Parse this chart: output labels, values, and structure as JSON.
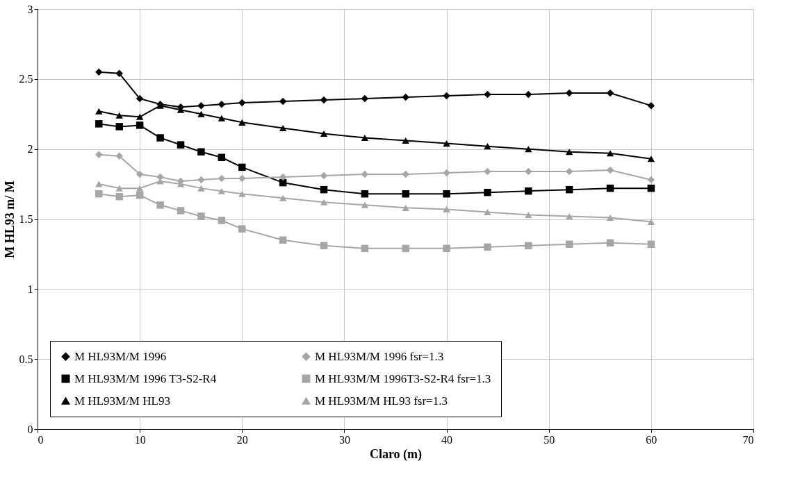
{
  "chart_data": {
    "type": "line",
    "xlabel": "Claro (m)",
    "ylabel": "M HL93 m/ M",
    "x": [
      6,
      8,
      10,
      12,
      14,
      16,
      18,
      20,
      24,
      28,
      32,
      36,
      40,
      44,
      48,
      52,
      56,
      60
    ],
    "series": [
      {
        "name": "M HL93M/M 1996",
        "color": "#000000",
        "marker": "diamond",
        "values": [
          2.55,
          2.54,
          2.36,
          2.32,
          2.3,
          2.31,
          2.32,
          2.33,
          2.34,
          2.35,
          2.36,
          2.37,
          2.38,
          2.39,
          2.39,
          2.4,
          2.4,
          2.31
        ]
      },
      {
        "name": "M HL93M/M 1996 T3-S2-R4",
        "color": "#000000",
        "marker": "square",
        "values": [
          2.18,
          2.16,
          2.17,
          2.08,
          2.03,
          1.98,
          1.94,
          1.87,
          1.76,
          1.71,
          1.68,
          1.68,
          1.68,
          1.69,
          1.7,
          1.71,
          1.72,
          1.72
        ]
      },
      {
        "name": "M HL93M/M HL93",
        "color": "#000000",
        "marker": "triangle",
        "values": [
          2.27,
          2.24,
          2.23,
          2.31,
          2.28,
          2.25,
          2.22,
          2.19,
          2.15,
          2.11,
          2.08,
          2.06,
          2.04,
          2.02,
          2.0,
          1.98,
          1.97,
          1.93
        ]
      },
      {
        "name": "M HL93M/M 1996 fsr=1.3",
        "color": "#a6a6a6",
        "marker": "diamond",
        "values": [
          1.96,
          1.95,
          1.82,
          1.8,
          1.77,
          1.78,
          1.79,
          1.79,
          1.8,
          1.81,
          1.82,
          1.82,
          1.83,
          1.84,
          1.84,
          1.84,
          1.85,
          1.78
        ]
      },
      {
        "name": "M HL93M/M 1996T3-S2-R4 fsr=1.3",
        "color": "#a6a6a6",
        "marker": "square",
        "values": [
          1.68,
          1.66,
          1.67,
          1.6,
          1.56,
          1.52,
          1.49,
          1.43,
          1.35,
          1.31,
          1.29,
          1.29,
          1.29,
          1.3,
          1.31,
          1.32,
          1.33,
          1.32
        ]
      },
      {
        "name": "M HL93M/M HL93 fsr=1.3",
        "color": "#a6a6a6",
        "marker": "triangle",
        "values": [
          1.75,
          1.72,
          1.72,
          1.77,
          1.75,
          1.72,
          1.7,
          1.68,
          1.65,
          1.62,
          1.6,
          1.58,
          1.57,
          1.55,
          1.53,
          1.52,
          1.51,
          1.48
        ]
      }
    ],
    "xlim": [
      0,
      70
    ],
    "xticks": [
      0,
      10,
      20,
      30,
      40,
      50,
      60,
      70
    ],
    "ylim": [
      0,
      3
    ],
    "yticks": [
      0,
      0.5,
      1,
      1.5,
      2,
      2.5,
      3
    ],
    "grid": true,
    "legend": "bottom"
  }
}
